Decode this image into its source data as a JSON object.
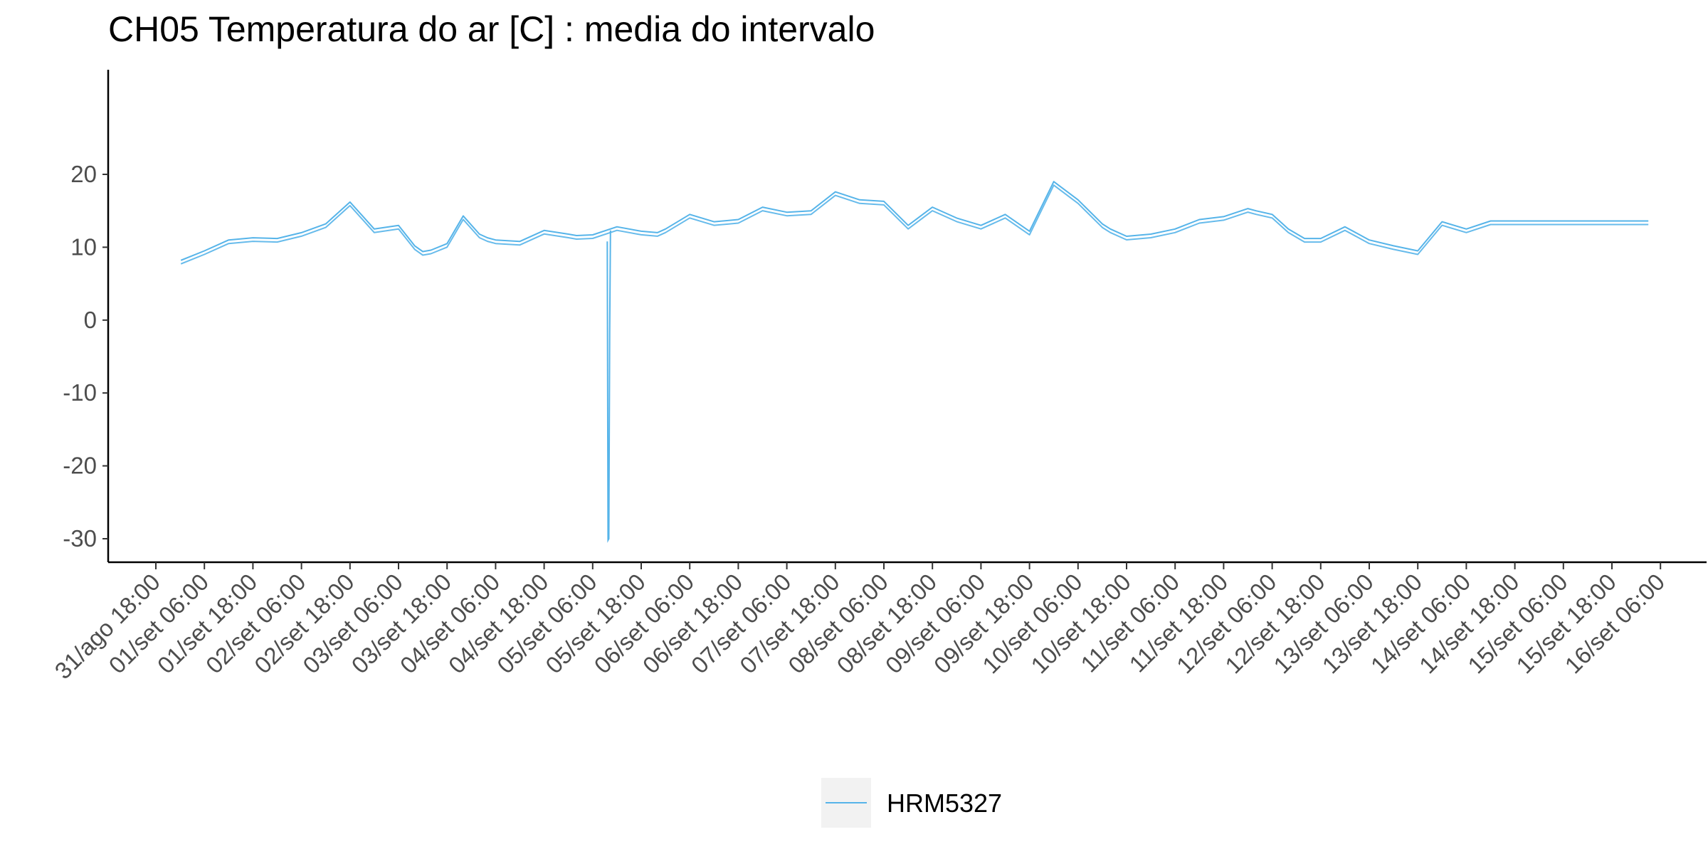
{
  "chart_data": {
    "type": "line",
    "title": "CH05 Temperatura do ar [C] : media do intervalo",
    "xlabel": "",
    "ylabel": "",
    "x_ticks": [
      "31/ago 18:00",
      "01/set 06:00",
      "01/set 18:00",
      "02/set 06:00",
      "02/set 18:00",
      "03/set 06:00",
      "03/set 18:00",
      "04/set 06:00",
      "04/set 18:00",
      "05/set 06:00",
      "05/set 18:00",
      "06/set 06:00",
      "06/set 18:00",
      "07/set 06:00",
      "07/set 18:00",
      "08/set 06:00",
      "08/set 18:00",
      "09/set 06:00",
      "09/set 18:00",
      "10/set 06:00",
      "10/set 18:00",
      "11/set 06:00",
      "11/set 18:00",
      "12/set 06:00",
      "12/set 18:00",
      "13/set 06:00",
      "13/set 18:00",
      "14/set 06:00",
      "14/set 18:00",
      "15/set 06:00",
      "15/set 18:00",
      "16/set 06:00"
    ],
    "x_unit": "hours since 31/ago 18:00",
    "xlim": [
      0,
      372
    ],
    "y_ticks": [
      20,
      10,
      0,
      -10,
      -20,
      -30
    ],
    "ylim": [
      -32.5,
      21.3
    ],
    "grid": false,
    "legend": "bottom",
    "series": [
      {
        "name": "HRM5327",
        "color": "#56B4E9",
        "x": [
          6.2,
          12,
          18,
          24,
          30,
          36,
          42,
          48,
          54,
          60,
          64,
          66,
          68,
          72,
          76,
          80,
          82,
          84,
          90,
          96,
          102,
          104,
          108,
          114,
          120,
          124,
          126,
          132,
          138,
          144,
          150,
          156,
          162,
          168,
          174,
          180,
          186,
          192,
          198,
          204,
          210,
          216,
          222,
          228,
          234,
          236,
          240,
          246,
          252,
          258,
          264,
          270,
          272,
          276,
          280,
          284,
          288,
          294,
          300,
          306,
          312,
          318,
          324,
          330,
          336,
          342,
          348,
          354,
          358,
          360,
          366,
          369
        ],
        "y": [
          8.2,
          9.5,
          11,
          11.3,
          11.2,
          12,
          13.2,
          16.2,
          12.5,
          13,
          10.2,
          9.4,
          9.6,
          10.5,
          14.3,
          11.8,
          11.3,
          11,
          10.8,
          12.3,
          11.8,
          11.6,
          11.7,
          12.8,
          12.2,
          12,
          12.5,
          14.5,
          13.5,
          13.8,
          15.5,
          14.8,
          15,
          17.6,
          16.5,
          16.3,
          13,
          15.5,
          14,
          13,
          14.5,
          12.2,
          19,
          16.5,
          13.2,
          12.5,
          11.5,
          11.8,
          12.5,
          13.8,
          14.2,
          15.3,
          15,
          14.5,
          12.5,
          11.2,
          11.2,
          12.8,
          11,
          10.2,
          9.5,
          13.5,
          12.5,
          13.6,
          13.6,
          13.6,
          13.6,
          13.6,
          13.6,
          13.6,
          13.6,
          13.6
        ],
        "anomaly": {
          "x": [
            111.6,
            111.8,
            112.0,
            112.2,
            112.4
          ],
          "y": [
            10.8,
            -30.2,
            -30,
            -1.5,
            12.3
          ]
        }
      }
    ]
  }
}
